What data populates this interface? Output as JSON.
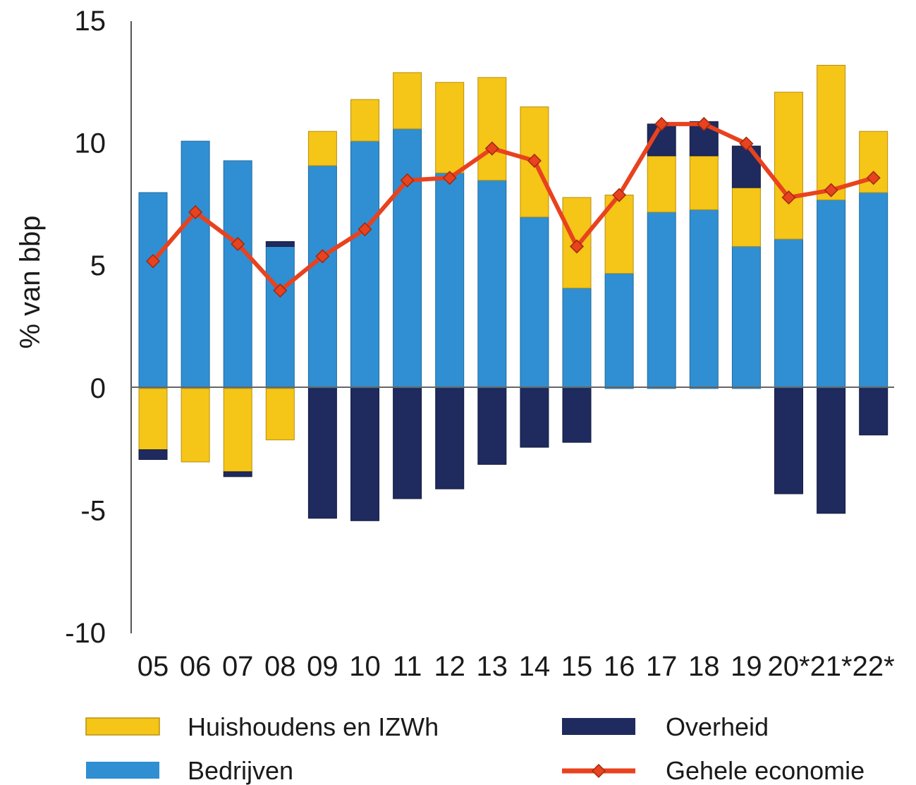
{
  "chart_data": {
    "type": "bar",
    "stacked": true,
    "title": "",
    "xlabel": "",
    "ylabel": "% van bbp",
    "ylim": [
      -10,
      15
    ],
    "yticks": [
      15,
      10,
      5,
      0,
      -5,
      -10
    ],
    "categories": [
      "05",
      "06",
      "07",
      "08",
      "09",
      "10",
      "11",
      "12",
      "13",
      "14",
      "15",
      "16",
      "17",
      "18",
      "19",
      "20*",
      "21*",
      "22*"
    ],
    "series": [
      {
        "key": "bedrijven",
        "name": "Bedrijven",
        "type": "bar",
        "color": "#2f8fd2",
        "values": [
          8.0,
          10.1,
          9.3,
          5.8,
          9.1,
          10.1,
          10.6,
          8.8,
          8.5,
          7.0,
          4.1,
          4.7,
          7.2,
          7.3,
          5.8,
          6.1,
          7.7,
          8.0
        ]
      },
      {
        "key": "huishoudens",
        "name": "Huishoudens en IZWh",
        "type": "bar",
        "color": "#f5c518",
        "values": [
          -2.5,
          -3.0,
          -3.4,
          -2.1,
          1.4,
          1.7,
          2.3,
          3.7,
          4.2,
          4.5,
          3.7,
          3.2,
          2.3,
          2.2,
          2.4,
          6.0,
          5.5,
          2.5
        ]
      },
      {
        "key": "overheid",
        "name": "Overheid",
        "type": "bar",
        "color": "#1f2a5e",
        "values": [
          -0.4,
          0.0,
          -0.2,
          0.2,
          -5.3,
          -5.4,
          -4.5,
          -4.1,
          -3.1,
          -2.4,
          -2.2,
          0.0,
          1.3,
          1.4,
          1.7,
          -4.3,
          -5.1,
          -1.9
        ]
      },
      {
        "key": "gehele",
        "name": "Gehele economie",
        "type": "line",
        "color": "#e8421e",
        "values": [
          5.2,
          7.2,
          5.9,
          4.0,
          5.4,
          6.5,
          8.5,
          8.6,
          9.8,
          9.3,
          5.8,
          7.9,
          10.8,
          10.8,
          10.0,
          7.8,
          8.1,
          8.6
        ]
      }
    ],
    "legend": [
      {
        "label": "Huishoudens en IZWh",
        "series": "huishoudens"
      },
      {
        "label": "Overheid",
        "series": "overheid"
      },
      {
        "label": "Bedrijven",
        "series": "bedrijven"
      },
      {
        "label": "Gehele economie",
        "series": "gehele"
      }
    ],
    "legend_position": "bottom"
  }
}
